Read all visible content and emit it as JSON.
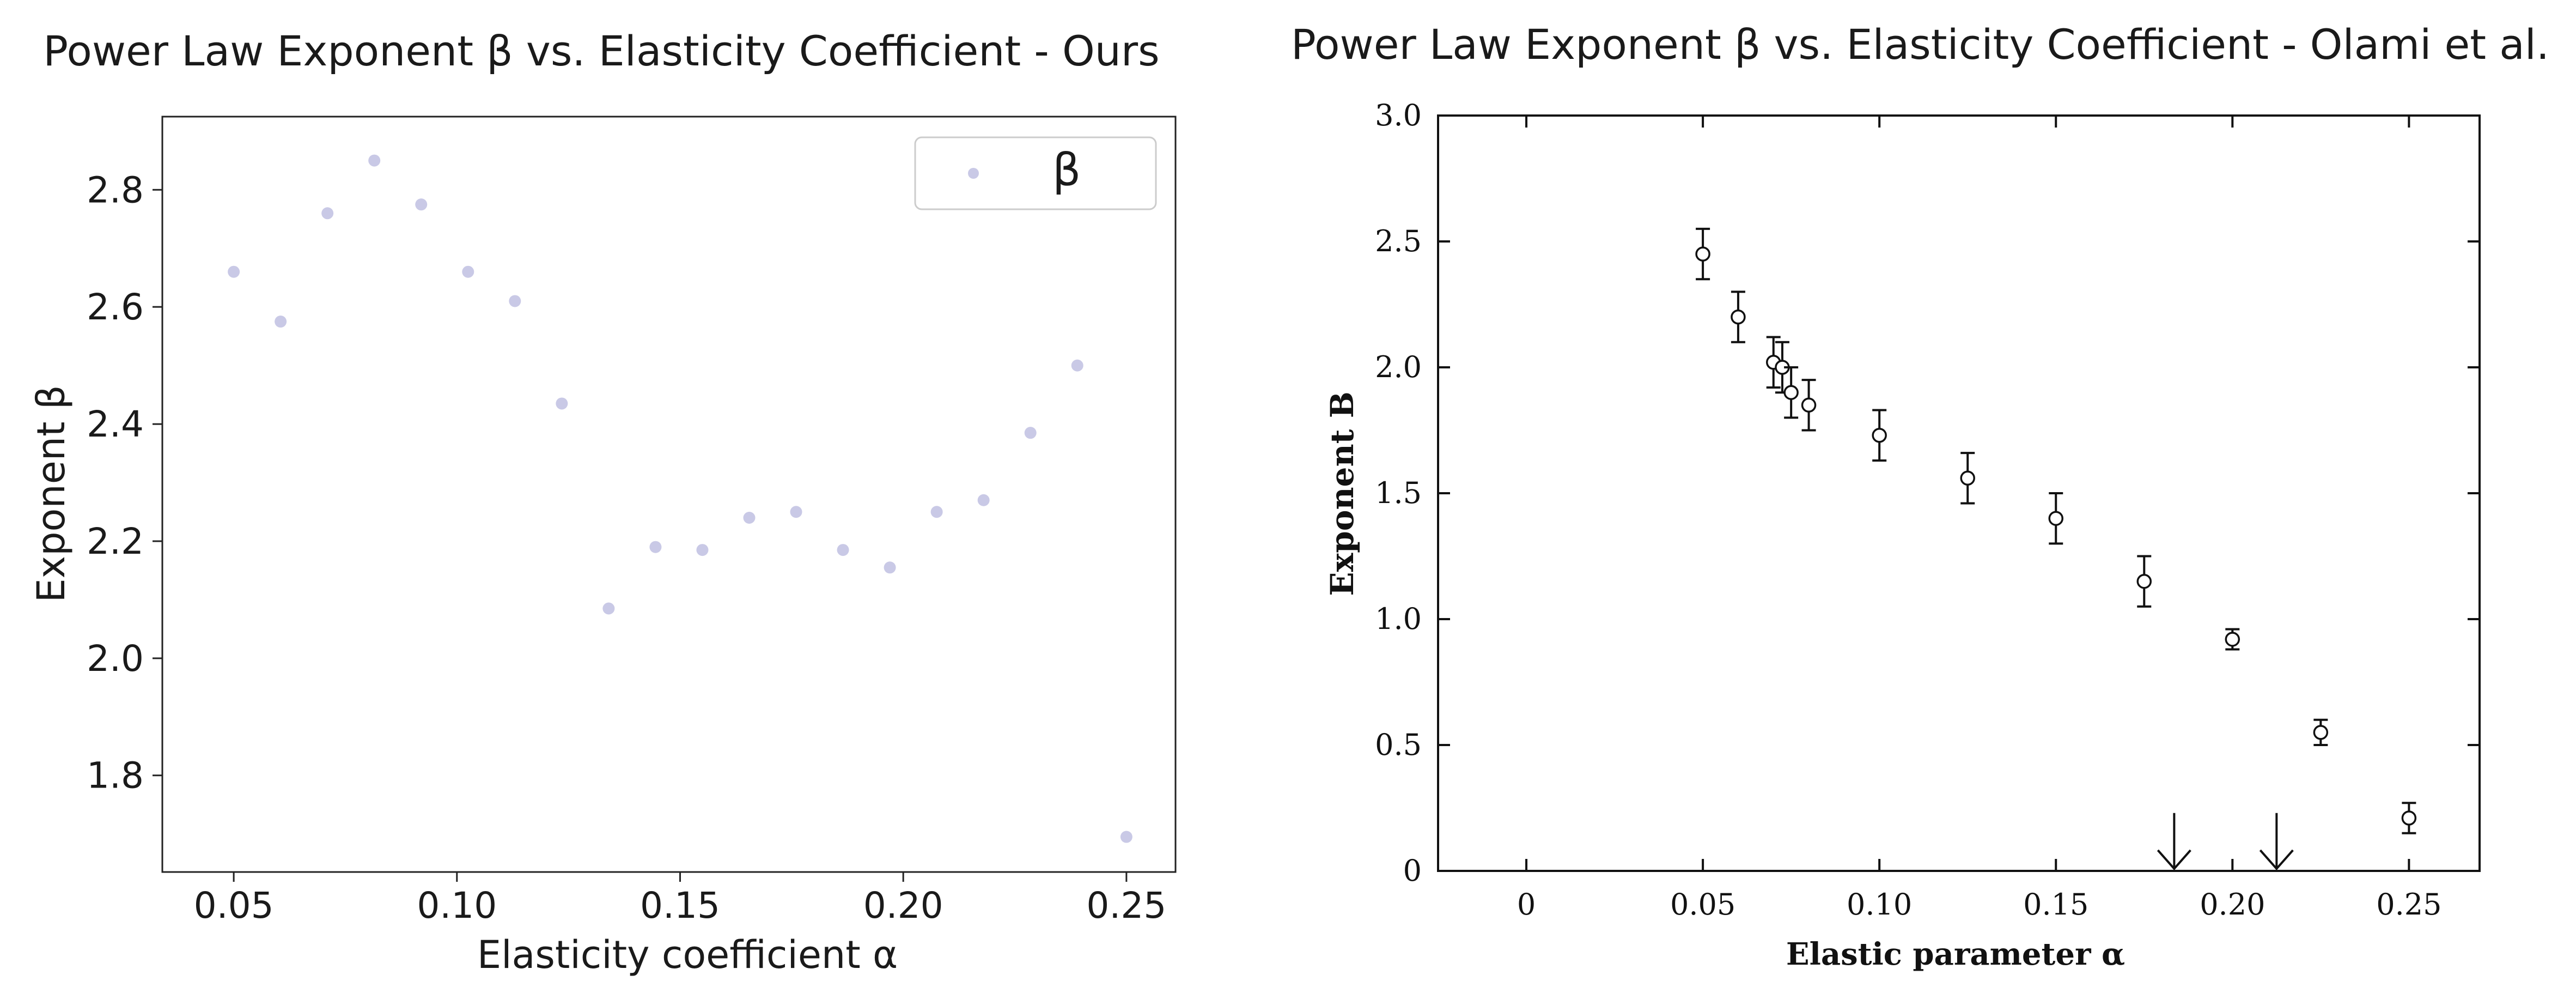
{
  "chart_data": [
    {
      "type": "scatter",
      "title": "Power Law Exponent β vs. Elasticity Coefficient - Ours",
      "xlabel": "Elasticity coefficient α",
      "ylabel": "Exponent β",
      "xlim": [
        0.034,
        0.261
      ],
      "ylim": [
        1.635,
        2.925
      ],
      "xticks": [
        0.05,
        0.1,
        0.15,
        0.2,
        0.25
      ],
      "xtick_labels": [
        "0.05",
        "0.10",
        "0.15",
        "0.20",
        "0.25"
      ],
      "yticks": [
        1.8,
        2.0,
        2.2,
        2.4,
        2.6,
        2.8
      ],
      "ytick_labels": [
        "1.8",
        "2.0",
        "2.2",
        "2.4",
        "2.6",
        "2.8"
      ],
      "grid": false,
      "legend": "top-right",
      "marker_color": "#c9c9e6",
      "series": [
        {
          "name": "β",
          "x": [
            0.05,
            0.0605,
            0.071,
            0.0815,
            0.092,
            0.1025,
            0.113,
            0.1235,
            0.134,
            0.1445,
            0.155,
            0.1655,
            0.176,
            0.1865,
            0.197,
            0.2075,
            0.218,
            0.2285,
            0.239,
            0.25
          ],
          "y": [
            2.66,
            2.575,
            2.76,
            2.85,
            2.775,
            2.66,
            2.61,
            2.435,
            2.085,
            2.19,
            2.185,
            2.24,
            2.25,
            2.185,
            2.155,
            2.25,
            2.27,
            2.385,
            2.5,
            1.695
          ]
        }
      ]
    },
    {
      "type": "scatter",
      "title": "Power Law Exponent β vs. Elasticity Coefficient - Olami et al.",
      "xlabel": "Elastic parameter α",
      "ylabel": "Exponent B",
      "xlim": [
        -0.025,
        0.27
      ],
      "ylim": [
        0,
        3.0
      ],
      "xticks": [
        0,
        0.05,
        0.1,
        0.15,
        0.2,
        0.25
      ],
      "xtick_labels": [
        "0",
        "0.05",
        "0.10",
        "0.15",
        "0.20",
        "0.25"
      ],
      "yticks": [
        0,
        0.5,
        1.0,
        1.5,
        2.0,
        2.5,
        3.0
      ],
      "ytick_labels": [
        "0",
        "0.5",
        "1.0",
        "1.5",
        "2.0",
        "2.5",
        "3.0"
      ],
      "grid": false,
      "points": [
        {
          "x": 0.05,
          "y": 2.45,
          "err": 0.1
        },
        {
          "x": 0.06,
          "y": 2.2,
          "err": 0.1
        },
        {
          "x": 0.07,
          "y": 2.02,
          "err": 0.1
        },
        {
          "x": 0.0725,
          "y": 2.0,
          "err": 0.1
        },
        {
          "x": 0.075,
          "y": 1.9,
          "err": 0.1
        },
        {
          "x": 0.08,
          "y": 1.85,
          "err": 0.1
        },
        {
          "x": 0.1,
          "y": 1.73,
          "err": 0.1
        },
        {
          "x": 0.125,
          "y": 1.56,
          "err": 0.1
        },
        {
          "x": 0.15,
          "y": 1.4,
          "err": 0.1
        },
        {
          "x": 0.175,
          "y": 1.15,
          "err": 0.1
        },
        {
          "x": 0.2,
          "y": 0.92,
          "err": 0.04
        },
        {
          "x": 0.225,
          "y": 0.55,
          "err": 0.05
        },
        {
          "x": 0.25,
          "y": 0.21,
          "err": 0.06
        }
      ],
      "arrows_at_x": [
        0.1835,
        0.2125
      ],
      "arrow_top_y": 0.23
    }
  ]
}
